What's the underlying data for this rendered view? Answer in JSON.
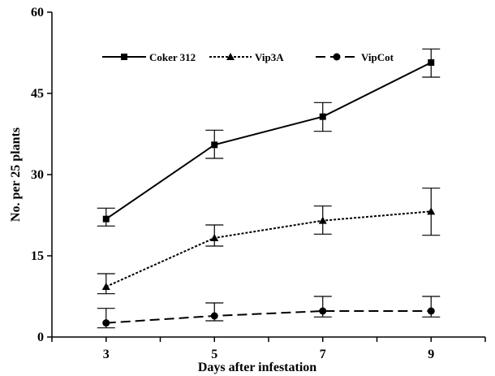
{
  "chart_data": {
    "type": "line",
    "title": "",
    "xlabel": "Days after infestation",
    "ylabel": "No. per 25 plants",
    "x": [
      3,
      5,
      7,
      9
    ],
    "x_tick_labels": [
      "3",
      "5",
      "7",
      "9"
    ],
    "ylim": [
      0,
      60
    ],
    "y_ticks": [
      0,
      15,
      30,
      45,
      60
    ],
    "y_tick_labels": [
      "0",
      "15",
      "30",
      "45",
      "60"
    ],
    "grid": false,
    "legend_position": "top-left",
    "series": [
      {
        "name": "Coker 312",
        "marker": "square",
        "line_style": "solid",
        "color": "#000000",
        "values": [
          21.8,
          35.5,
          40.7,
          50.7
        ],
        "err_low": [
          20.5,
          33.0,
          38.0,
          48.0
        ],
        "err_high": [
          23.8,
          38.2,
          43.3,
          53.2
        ]
      },
      {
        "name": "Vip3A",
        "marker": "triangle",
        "line_style": "dotted",
        "color": "#000000",
        "values": [
          9.3,
          18.3,
          21.5,
          23.2
        ],
        "err_low": [
          8.0,
          16.8,
          19.0,
          18.8
        ],
        "err_high": [
          11.7,
          20.7,
          24.2,
          27.5
        ]
      },
      {
        "name": "VipCot",
        "marker": "circle",
        "line_style": "dashed",
        "color": "#000000",
        "values": [
          2.6,
          3.9,
          4.8,
          4.8
        ],
        "err_low": [
          1.7,
          3.0,
          3.7,
          3.7
        ],
        "err_high": [
          5.3,
          6.3,
          7.5,
          7.5
        ]
      }
    ]
  }
}
